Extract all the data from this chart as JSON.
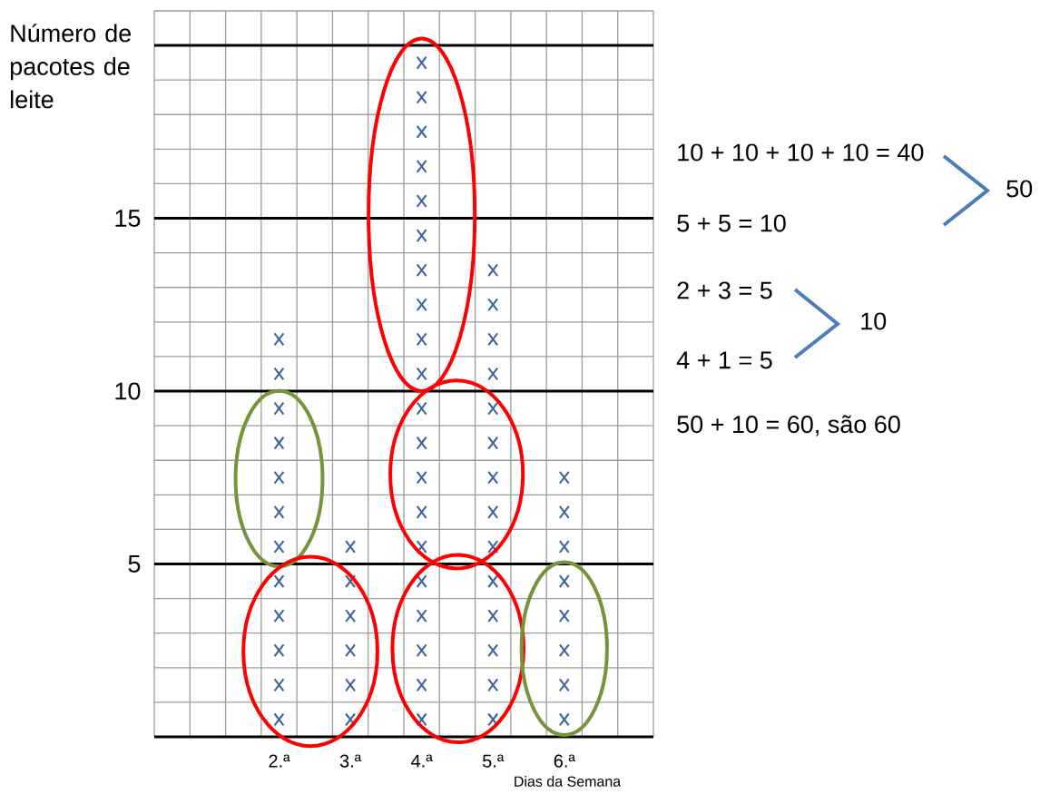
{
  "chart_data": {
    "type": "scatter",
    "ylabel": "Número de pacotes de leite",
    "xlabel": "Dias da Semana",
    "categories": [
      "2.ª",
      "3.ª",
      "4.ª",
      "5.ª",
      "6.ª"
    ],
    "series": [
      {
        "color": "#3c679e",
        "x": [
          "2.ª",
          "2.ª",
          "2.ª",
          "2.ª",
          "2.ª",
          "2.ª",
          "2.ª",
          "2.ª",
          "2.ª",
          "2.ª",
          "2.ª",
          "2.ª",
          "3.ª",
          "3.ª",
          "3.ª",
          "3.ª",
          "3.ª",
          "3.ª",
          "4.ª",
          "4.ª",
          "4.ª",
          "4.ª",
          "4.ª",
          "4.ª",
          "4.ª",
          "4.ª",
          "4.ª",
          "4.ª",
          "4.ª",
          "4.ª",
          "4.ª",
          "4.ª",
          "4.ª",
          "4.ª",
          "4.ª",
          "4.ª",
          "4.ª",
          "4.ª",
          "5.ª",
          "5.ª",
          "5.ª",
          "5.ª",
          "5.ª",
          "5.ª",
          "5.ª",
          "5.ª",
          "5.ª",
          "5.ª",
          "5.ª",
          "5.ª",
          "5.ª",
          "5.ª",
          "6.ª",
          "6.ª",
          "6.ª",
          "6.ª",
          "6.ª",
          "6.ª",
          "6.ª",
          "6.ª"
        ],
        "values": [
          0.5,
          1.5,
          2.5,
          3.5,
          4.5,
          5.5,
          6.5,
          7.5,
          8.5,
          9.5,
          10.5,
          11.5,
          0.5,
          1.5,
          2.5,
          3.5,
          4.5,
          5.5,
          0.5,
          1.5,
          2.5,
          3.5,
          4.5,
          5.5,
          6.5,
          7.5,
          8.5,
          9.5,
          10.5,
          11.5,
          12.5,
          13.5,
          14.5,
          15.5,
          16.5,
          17.5,
          18.5,
          19.5,
          0.5,
          1.5,
          2.5,
          3.5,
          4.5,
          5.5,
          6.5,
          7.5,
          8.5,
          9.5,
          10.5,
          11.5,
          12.5,
          13.5,
          0.5,
          1.5,
          2.5,
          3.5,
          4.5,
          5.5,
          6.5,
          7.5
        ]
      }
    ],
    "ylim": [
      0,
      21
    ],
    "yticks": [
      {
        "value": 0,
        "label": null
      },
      5,
      10,
      15,
      {
        "value": 20,
        "label": null
      }
    ],
    "grid": true,
    "marker": "cross",
    "annotations": [
      "10 + 10 + 10 + 10  = 40",
      "50",
      "5 + 5 = 10",
      "2 + 3 = 5",
      "10",
      "4 + 1 = 5",
      "50 + 10 = 60, são 60"
    ]
  }
}
